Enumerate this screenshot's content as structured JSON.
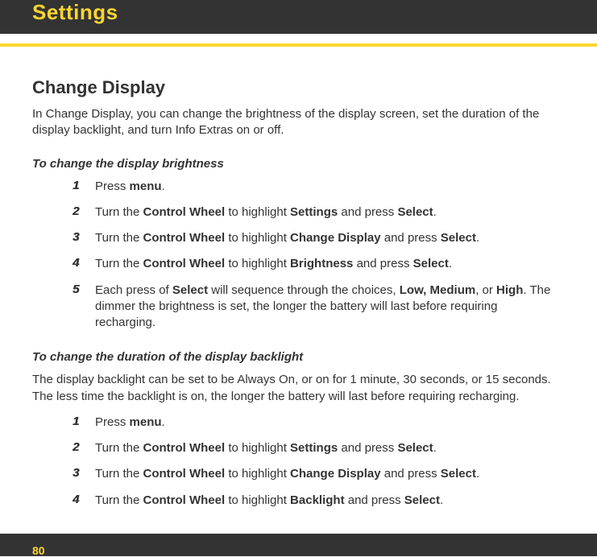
{
  "header": {
    "title": "Settings"
  },
  "section": {
    "title": "Change Display",
    "intro": "In Change Display, you can change the brightness of the display screen, set the duration of the display backlight, and turn Info Extras on or off."
  },
  "brightness": {
    "heading": "To change the display brightness",
    "steps": [
      {
        "n": "1",
        "segments": [
          {
            "t": "Press "
          },
          {
            "t": "menu",
            "b": true
          },
          {
            "t": "."
          }
        ]
      },
      {
        "n": "2",
        "segments": [
          {
            "t": "Turn the "
          },
          {
            "t": "Control Wheel",
            "b": true
          },
          {
            "t": " to highlight "
          },
          {
            "t": "Settings",
            "b": true
          },
          {
            "t": " and press "
          },
          {
            "t": "Select",
            "b": true
          },
          {
            "t": "."
          }
        ]
      },
      {
        "n": "3",
        "segments": [
          {
            "t": "Turn the "
          },
          {
            "t": "Control Wheel",
            "b": true
          },
          {
            "t": " to highlight "
          },
          {
            "t": "Change Display",
            "b": true
          },
          {
            "t": " and press "
          },
          {
            "t": "Select",
            "b": true
          },
          {
            "t": "."
          }
        ]
      },
      {
        "n": "4",
        "segments": [
          {
            "t": "Turn the "
          },
          {
            "t": "Control Wheel",
            "b": true
          },
          {
            "t": " to highlight "
          },
          {
            "t": "Brightness",
            "b": true
          },
          {
            "t": " and press "
          },
          {
            "t": "Select",
            "b": true
          },
          {
            "t": "."
          }
        ]
      },
      {
        "n": "5",
        "segments": [
          {
            "t": "Each press of "
          },
          {
            "t": "Select",
            "b": true
          },
          {
            "t": " will sequence through the choices, "
          },
          {
            "t": "Low, Medium",
            "b": true
          },
          {
            "t": ", or "
          },
          {
            "t": "High",
            "b": true
          },
          {
            "t": ". The dimmer the brightness is set, the longer the battery will last before requiring recharging."
          }
        ]
      }
    ]
  },
  "backlight": {
    "heading": "To change the duration of the display backlight",
    "intro": "The display backlight can be set to be Always On, or on for 1 minute, 30 seconds, or 15 seconds. The less time the backlight is on, the longer the battery will last before requiring recharging.",
    "steps": [
      {
        "n": "1",
        "segments": [
          {
            "t": "Press "
          },
          {
            "t": "menu",
            "b": true
          },
          {
            "t": "."
          }
        ]
      },
      {
        "n": "2",
        "segments": [
          {
            "t": "Turn the "
          },
          {
            "t": "Control Wheel",
            "b": true
          },
          {
            "t": " to highlight "
          },
          {
            "t": "Settings",
            "b": true
          },
          {
            "t": " and press "
          },
          {
            "t": "Select",
            "b": true
          },
          {
            "t": "."
          }
        ]
      },
      {
        "n": "3",
        "segments": [
          {
            "t": "Turn the "
          },
          {
            "t": "Control Wheel",
            "b": true
          },
          {
            "t": " to highlight "
          },
          {
            "t": "Change Display",
            "b": true
          },
          {
            "t": " and press "
          },
          {
            "t": "Select",
            "b": true
          },
          {
            "t": "."
          }
        ]
      },
      {
        "n": "4",
        "segments": [
          {
            "t": "Turn the "
          },
          {
            "t": "Control Wheel",
            "b": true
          },
          {
            "t": " to highlight "
          },
          {
            "t": "Backlight",
            "b": true
          },
          {
            "t": " and press "
          },
          {
            "t": "Select",
            "b": true
          },
          {
            "t": "."
          }
        ]
      }
    ]
  },
  "footer": {
    "page": "80"
  }
}
